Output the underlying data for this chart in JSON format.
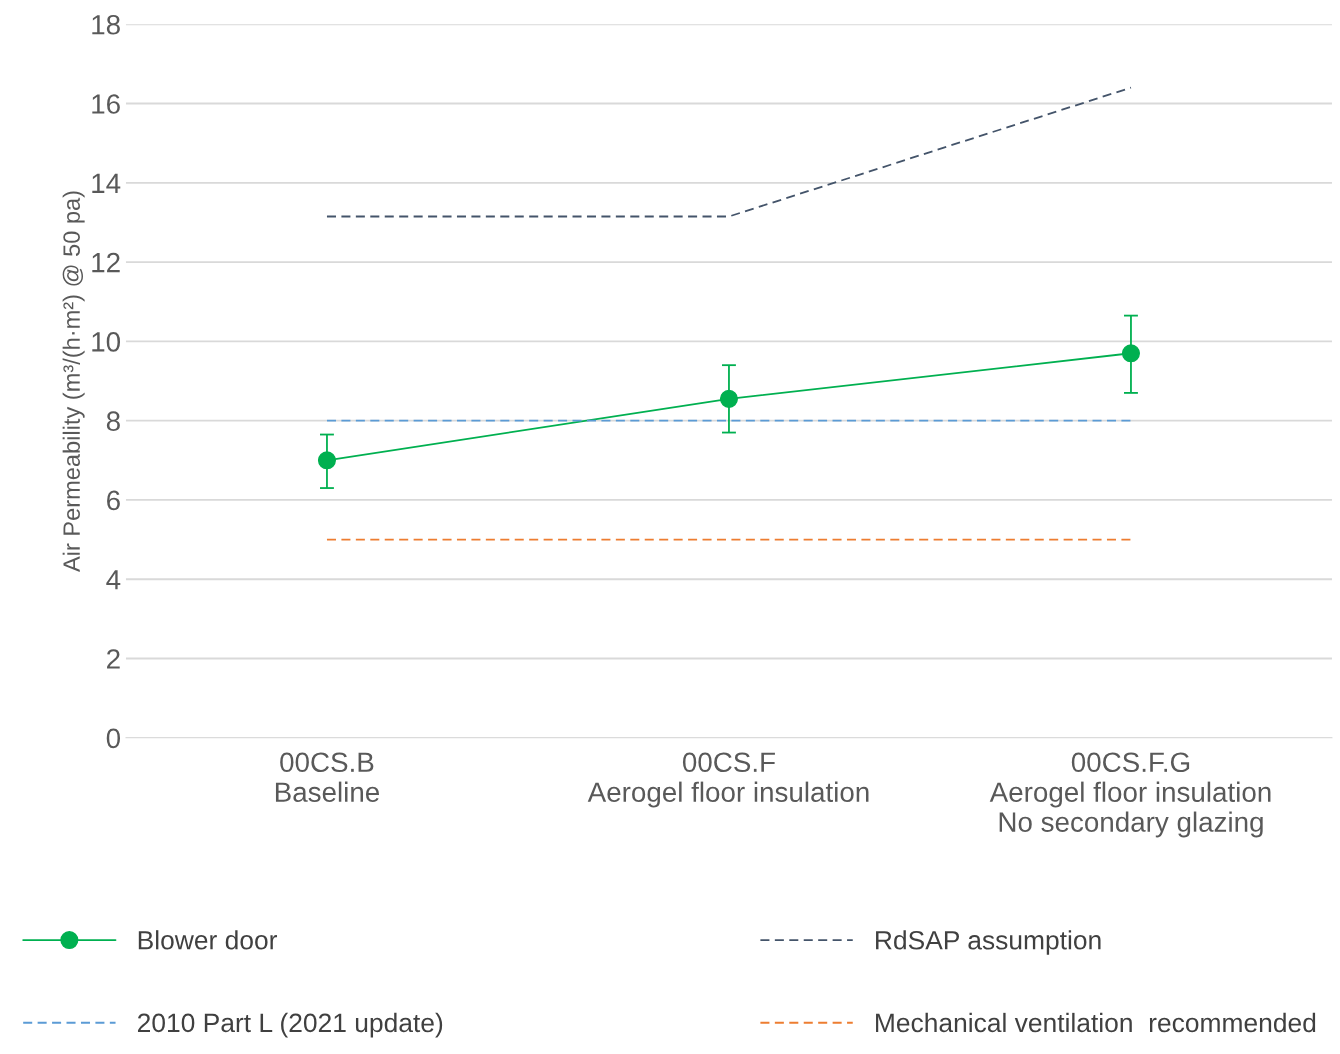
{
  "chart_data": {
    "type": "line",
    "ylabel": "Air Permeability (m³/(h·m²) @ 50 pa)",
    "categories": [
      "00CS.B\nBaseline",
      "00CS.F\nAerogel floor insulation",
      "00CS.F.G\nAerogel floor insulation\nNo secondary glazing"
    ],
    "series": [
      {
        "name": "Blower door",
        "color": "#00b050",
        "values": [
          7.0,
          8.55,
          9.7
        ],
        "errors": [
          [
            6.3,
            7.65
          ],
          [
            7.7,
            9.4
          ],
          [
            8.7,
            10.65
          ]
        ],
        "marker": "circle",
        "line_style": "solid"
      },
      {
        "name": "RdSAP assumption",
        "color": "#44546a",
        "values": [
          13.15,
          13.15,
          16.4
        ],
        "marker": "none",
        "line_style": "dashed"
      },
      {
        "name": "2010 Part L (2021 update)",
        "color": "#5b9bd5",
        "values": [
          8,
          8,
          8
        ],
        "marker": "none",
        "line_style": "dashed"
      },
      {
        "name": "Mechanical ventilation  recommended",
        "color": "#ed7d31",
        "values": [
          5,
          5,
          5
        ],
        "marker": "none",
        "line_style": "dashed"
      }
    ],
    "ylim": [
      0,
      18
    ],
    "yticks": [
      0,
      2,
      4,
      6,
      8,
      10,
      12,
      14,
      16,
      18
    ],
    "grid": "y",
    "legend": "bottom"
  }
}
